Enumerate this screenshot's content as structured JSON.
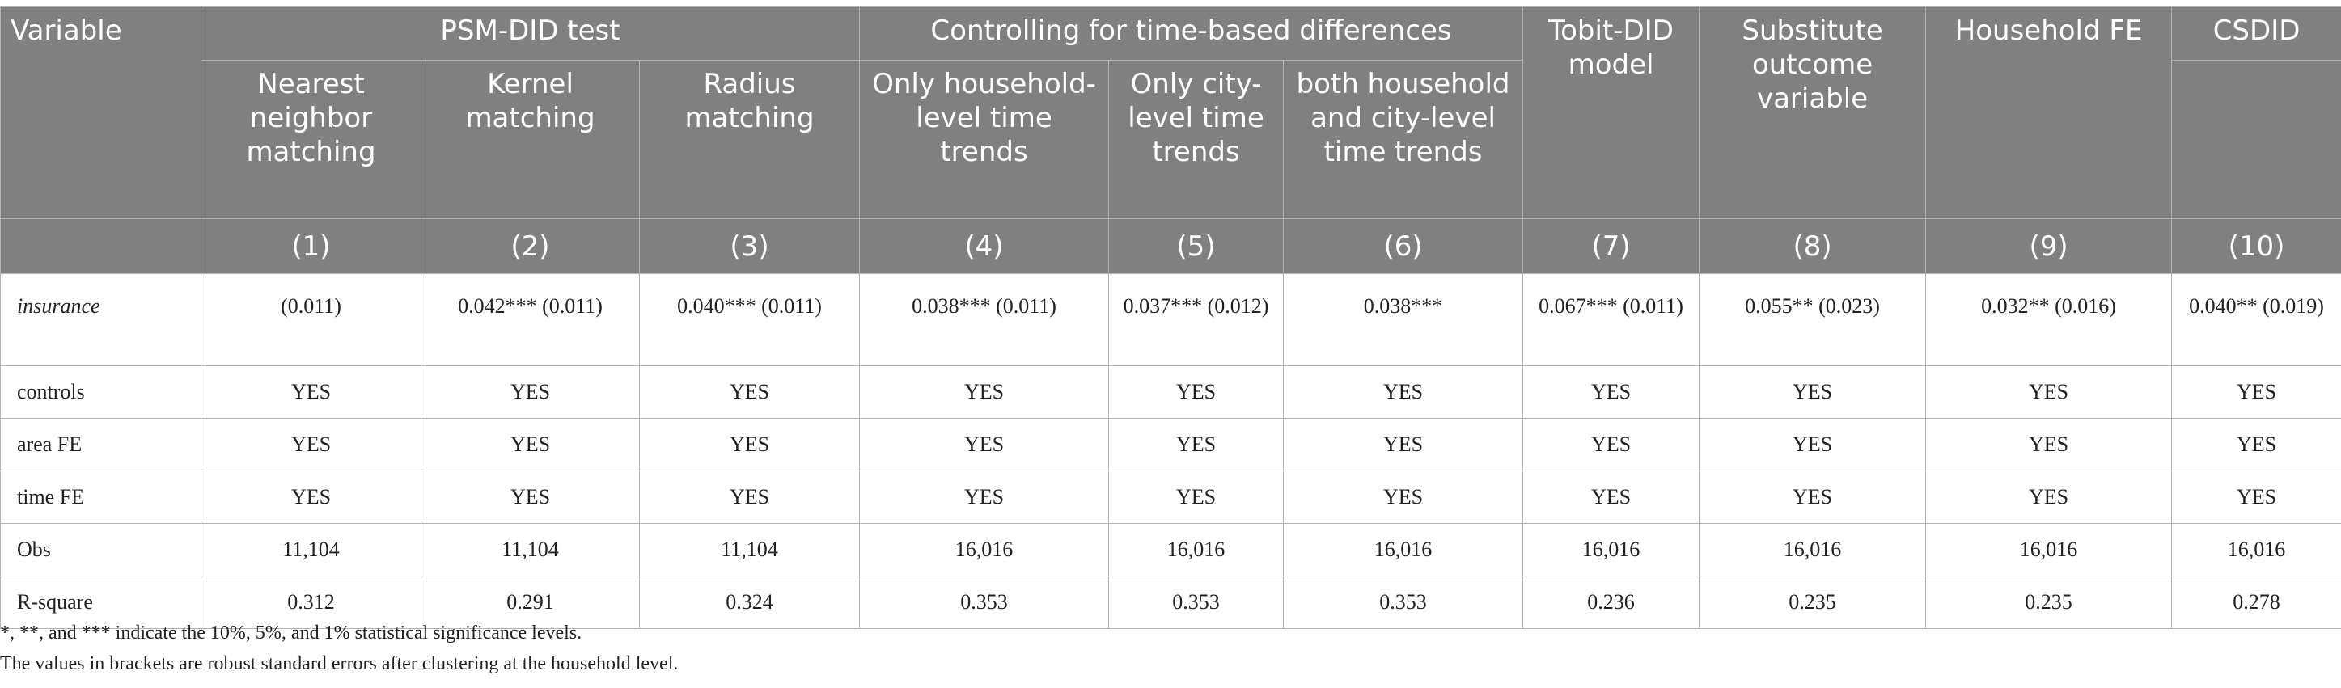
{
  "header": {
    "variable": "Variable",
    "groups": {
      "psm": "PSM-DID test",
      "time": "Controlling for time-based differences",
      "tobit": "Tobit-DID model",
      "substitute": "Substitute outcome variable",
      "household_fe": "Household FE",
      "csdid": "CSDID"
    },
    "subs": {
      "nearest": "Nearest neighbor matching",
      "kernel": "Kernel matching",
      "radius": "Radius matching",
      "household_trends": "Only household-level time trends",
      "city_trends": "Only city-level time trends",
      "both_trends": "both household and city-level time trends"
    },
    "cols": [
      "(1)",
      "(2)",
      "(3)",
      "(4)",
      "(5)",
      "(6)",
      "(7)",
      "(8)",
      "(9)",
      "(10)"
    ]
  },
  "rows": [
    {
      "label": "insurance",
      "cells": [
        "(0.011)",
        "0.042*** (0.011)",
        "0.040*** (0.011)",
        "0.038*** (0.011)",
        "0.037*** (0.012)",
        "0.038***",
        "0.067*** (0.011)",
        "0.055** (0.023)",
        "0.032** (0.016)",
        "0.040** (0.019)"
      ]
    },
    {
      "label": "controls",
      "cells": [
        "YES",
        "YES",
        "YES",
        "YES",
        "YES",
        "YES",
        "YES",
        "YES",
        "YES",
        "YES"
      ]
    },
    {
      "label": "area FE",
      "cells": [
        "YES",
        "YES",
        "YES",
        "YES",
        "YES",
        "YES",
        "YES",
        "YES",
        "YES",
        "YES"
      ]
    },
    {
      "label": "time FE",
      "cells": [
        "YES",
        "YES",
        "YES",
        "YES",
        "YES",
        "YES",
        "YES",
        "YES",
        "YES",
        "YES"
      ]
    },
    {
      "label": "Obs",
      "cells": [
        "11,104",
        "11,104",
        "11,104",
        "16,016",
        "16,016",
        "16,016",
        "16,016",
        "16,016",
        "16,016",
        "16,016"
      ]
    },
    {
      "label": "R-square",
      "cells": [
        "0.312",
        "0.291",
        "0.324",
        "0.353",
        "0.353",
        "0.353",
        "0.236",
        "0.235",
        "0.235",
        "0.278"
      ]
    }
  ],
  "notes": [
    "*, **, and *** indicate the 10%, 5%, and 1% statistical significance levels.",
    "The values in brackets are robust standard errors after clustering at the household level."
  ]
}
